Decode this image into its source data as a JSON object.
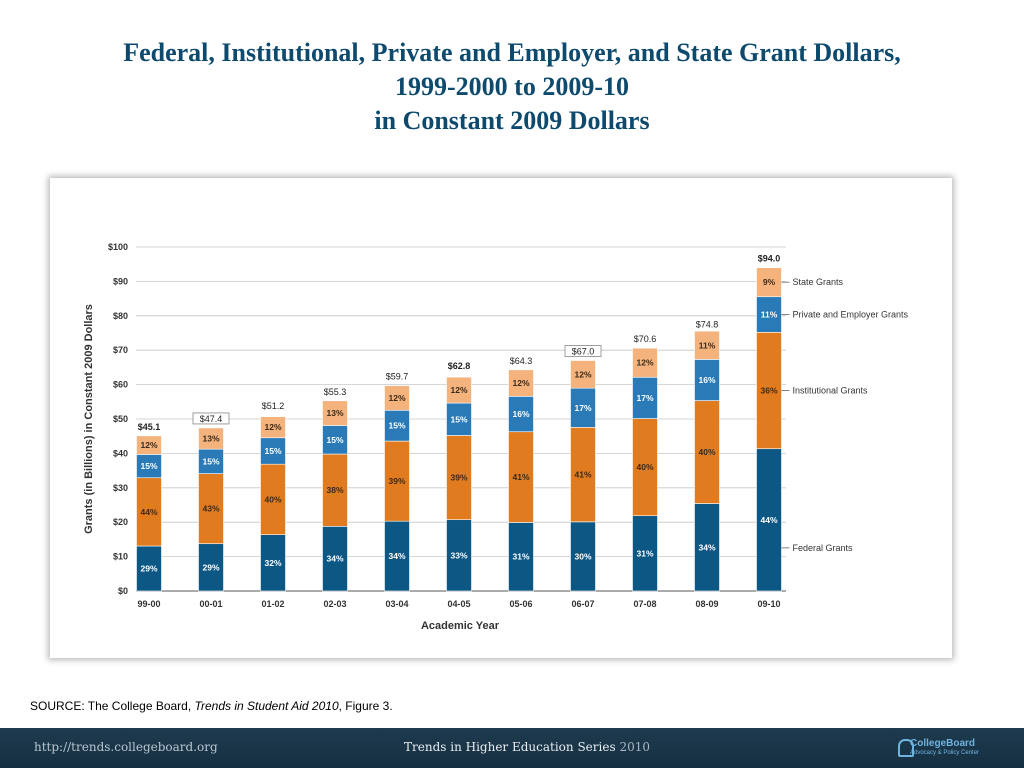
{
  "slide": {
    "title_line1": "Federal, Institutional, Private and Employer, and State Grant Dollars,",
    "title_line2": "1999-2000 to 2009-10",
    "title_line3": "in Constant 2009 Dollars",
    "source_prefix": "SOURCE: The College Board, ",
    "source_italic": "Trends in Student Aid 2010",
    "source_suffix": ", Figure 3."
  },
  "footer": {
    "url": "http://trends.collegeboard.org",
    "series": "Trends in Higher Education Series",
    "year": "2010",
    "logo_name": "CollegeBoard",
    "logo_sub": "Advocacy & Policy Center"
  },
  "colors": {
    "federal": "#0d5785",
    "institutional": "#e07b1f",
    "private_employer": "#2a7ab7",
    "state": "#f4b27c",
    "title": "#0d4a6e",
    "footer_bg": "#1e3a4e"
  },
  "chart_data": {
    "type": "bar",
    "stacked": true,
    "xlabel": "Academic Year",
    "ylabel": "Grants (in Billions) in Constant 2009 Dollars",
    "ylim": [
      0,
      100
    ],
    "ytick_labels": [
      "$0",
      "$10",
      "$20",
      "$30",
      "$40",
      "$50",
      "$60",
      "$70",
      "$80",
      "$90",
      "$100"
    ],
    "categories": [
      "99-00",
      "00-01",
      "01-02",
      "02-03",
      "03-04",
      "04-05",
      "05-06",
      "06-07",
      "07-08",
      "08-09",
      "09-10"
    ],
    "totals": [
      45.1,
      47.4,
      51.2,
      55.3,
      59.7,
      62.8,
      64.3,
      67.0,
      70.6,
      74.8,
      94.0
    ],
    "total_labels": [
      "$45.1",
      "$47.4",
      "$51.2",
      "$55.3",
      "$59.7",
      "$62.8",
      "$64.3",
      "$67.0",
      "$70.6",
      "$74.8",
      "$94.0"
    ],
    "series": [
      {
        "name": "Federal Grants",
        "key": "federal",
        "percents": [
          29,
          29,
          32,
          34,
          34,
          33,
          31,
          30,
          31,
          34,
          44
        ]
      },
      {
        "name": "Institutional Grants",
        "key": "institutional",
        "percents": [
          44,
          43,
          40,
          38,
          39,
          39,
          41,
          41,
          40,
          40,
          36
        ]
      },
      {
        "name": "Private and Employer Grants",
        "key": "private_employer",
        "percents": [
          15,
          15,
          15,
          15,
          15,
          15,
          16,
          17,
          17,
          16,
          11
        ]
      },
      {
        "name": "State Grants",
        "key": "state",
        "percents": [
          12,
          13,
          12,
          13,
          12,
          12,
          12,
          12,
          12,
          11,
          9
        ]
      }
    ],
    "legend_placement": "right",
    "grid": true
  }
}
